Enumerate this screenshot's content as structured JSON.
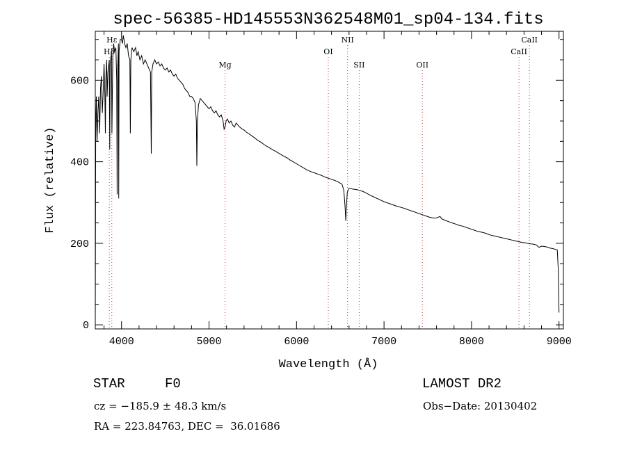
{
  "chart_data": {
    "type": "line",
    "title": "spec-56385-HD145553N362548M01_sp04-134.fits",
    "xlabel": "Wavelength (Å)",
    "ylabel": "Flux (relative)",
    "xlim": [
      3700,
      9050
    ],
    "ylim": [
      -10,
      720
    ],
    "xticks": [
      4000,
      5000,
      6000,
      7000,
      8000,
      9000
    ],
    "yticks": [
      0,
      200,
      400,
      600
    ],
    "grid": false,
    "series": [
      {
        "points": [
          [
            3700,
            0
          ],
          [
            3705,
            480
          ],
          [
            3712,
            560
          ],
          [
            3720,
            450
          ],
          [
            3730,
            520
          ],
          [
            3740,
            560
          ],
          [
            3750,
            470
          ],
          [
            3760,
            580
          ],
          [
            3770,
            610
          ],
          [
            3780,
            520
          ],
          [
            3790,
            570
          ],
          [
            3800,
            640
          ],
          [
            3810,
            560
          ],
          [
            3815,
            470
          ],
          [
            3820,
            600
          ],
          [
            3830,
            650
          ],
          [
            3835,
            560
          ],
          [
            3845,
            620
          ],
          [
            3860,
            650
          ],
          [
            3865,
            430
          ],
          [
            3870,
            640
          ],
          [
            3885,
            670
          ],
          [
            3890,
            470
          ],
          [
            3900,
            660
          ],
          [
            3910,
            690
          ],
          [
            3920,
            670
          ],
          [
            3935,
            680
          ],
          [
            3945,
            600
          ],
          [
            3950,
            320
          ],
          [
            3955,
            620
          ],
          [
            3965,
            690
          ],
          [
            3968,
            310
          ],
          [
            3972,
            670
          ],
          [
            3985,
            700
          ],
          [
            4000,
            700
          ],
          [
            4010,
            690
          ],
          [
            4020,
            710
          ],
          [
            4035,
            690
          ],
          [
            4050,
            680
          ],
          [
            4065,
            690
          ],
          [
            4080,
            660
          ],
          [
            4095,
            650
          ],
          [
            4101,
            470
          ],
          [
            4106,
            650
          ],
          [
            4120,
            680
          ],
          [
            4140,
            670
          ],
          [
            4160,
            680
          ],
          [
            4175,
            660
          ],
          [
            4190,
            670
          ],
          [
            4210,
            650
          ],
          [
            4230,
            660
          ],
          [
            4250,
            640
          ],
          [
            4270,
            650
          ],
          [
            4290,
            640
          ],
          [
            4310,
            630
          ],
          [
            4330,
            620
          ],
          [
            4340,
            420
          ],
          [
            4345,
            620
          ],
          [
            4360,
            640
          ],
          [
            4380,
            650
          ],
          [
            4400,
            640
          ],
          [
            4420,
            645
          ],
          [
            4440,
            635
          ],
          [
            4460,
            640
          ],
          [
            4480,
            630
          ],
          [
            4500,
            625
          ],
          [
            4520,
            630
          ],
          [
            4540,
            620
          ],
          [
            4560,
            625
          ],
          [
            4580,
            615
          ],
          [
            4600,
            610
          ],
          [
            4620,
            615
          ],
          [
            4640,
            605
          ],
          [
            4660,
            600
          ],
          [
            4680,
            595
          ],
          [
            4700,
            590
          ],
          [
            4720,
            580
          ],
          [
            4740,
            575
          ],
          [
            4760,
            570
          ],
          [
            4780,
            560
          ],
          [
            4800,
            560
          ],
          [
            4820,
            555
          ],
          [
            4840,
            545
          ],
          [
            4855,
            500
          ],
          [
            4861,
            390
          ],
          [
            4867,
            500
          ],
          [
            4880,
            540
          ],
          [
            4900,
            555
          ],
          [
            4920,
            550
          ],
          [
            4940,
            545
          ],
          [
            4960,
            540
          ],
          [
            4980,
            535
          ],
          [
            5000,
            530
          ],
          [
            5020,
            535
          ],
          [
            5040,
            525
          ],
          [
            5060,
            520
          ],
          [
            5080,
            525
          ],
          [
            5100,
            515
          ],
          [
            5120,
            510
          ],
          [
            5140,
            515
          ],
          [
            5160,
            500
          ],
          [
            5172,
            480
          ],
          [
            5183,
            485
          ],
          [
            5195,
            500
          ],
          [
            5210,
            505
          ],
          [
            5230,
            495
          ],
          [
            5250,
            500
          ],
          [
            5270,
            490
          ],
          [
            5290,
            485
          ],
          [
            5310,
            495
          ],
          [
            5330,
            490
          ],
          [
            5350,
            485
          ],
          [
            5380,
            480
          ],
          [
            5400,
            478
          ],
          [
            5430,
            472
          ],
          [
            5460,
            468
          ],
          [
            5500,
            462
          ],
          [
            5530,
            457
          ],
          [
            5560,
            452
          ],
          [
            5600,
            447
          ],
          [
            5630,
            442
          ],
          [
            5660,
            438
          ],
          [
            5700,
            433
          ],
          [
            5740,
            428
          ],
          [
            5780,
            423
          ],
          [
            5820,
            418
          ],
          [
            5860,
            413
          ],
          [
            5890,
            410
          ],
          [
            5920,
            405
          ],
          [
            5960,
            400
          ],
          [
            6000,
            395
          ],
          [
            6040,
            390
          ],
          [
            6080,
            385
          ],
          [
            6120,
            380
          ],
          [
            6160,
            376
          ],
          [
            6200,
            373
          ],
          [
            6240,
            370
          ],
          [
            6280,
            367
          ],
          [
            6320,
            363
          ],
          [
            6360,
            360
          ],
          [
            6400,
            357
          ],
          [
            6440,
            354
          ],
          [
            6480,
            350
          ],
          [
            6520,
            345
          ],
          [
            6540,
            330
          ],
          [
            6555,
            290
          ],
          [
            6563,
            255
          ],
          [
            6570,
            290
          ],
          [
            6580,
            325
          ],
          [
            6600,
            335
          ],
          [
            6640,
            333
          ],
          [
            6680,
            332
          ],
          [
            6720,
            330
          ],
          [
            6760,
            327
          ],
          [
            6800,
            323
          ],
          [
            6840,
            318
          ],
          [
            6880,
            314
          ],
          [
            6920,
            310
          ],
          [
            6960,
            306
          ],
          [
            7000,
            302
          ],
          [
            7040,
            299
          ],
          [
            7080,
            296
          ],
          [
            7120,
            293
          ],
          [
            7160,
            290
          ],
          [
            7200,
            288
          ],
          [
            7240,
            285
          ],
          [
            7280,
            282
          ],
          [
            7320,
            279
          ],
          [
            7360,
            276
          ],
          [
            7400,
            273
          ],
          [
            7440,
            270
          ],
          [
            7480,
            267
          ],
          [
            7520,
            264
          ],
          [
            7560,
            262
          ],
          [
            7600,
            262
          ],
          [
            7640,
            266
          ],
          [
            7660,
            260
          ],
          [
            7700,
            256
          ],
          [
            7740,
            253
          ],
          [
            7780,
            250
          ],
          [
            7820,
            247
          ],
          [
            7860,
            244
          ],
          [
            7900,
            242
          ],
          [
            7940,
            239
          ],
          [
            7980,
            236
          ],
          [
            8020,
            233
          ],
          [
            8060,
            230
          ],
          [
            8100,
            228
          ],
          [
            8140,
            226
          ],
          [
            8180,
            223
          ],
          [
            8220,
            220
          ],
          [
            8260,
            218
          ],
          [
            8300,
            216
          ],
          [
            8340,
            214
          ],
          [
            8380,
            212
          ],
          [
            8420,
            210
          ],
          [
            8460,
            208
          ],
          [
            8500,
            206
          ],
          [
            8540,
            204
          ],
          [
            8580,
            202
          ],
          [
            8620,
            201
          ],
          [
            8660,
            199
          ],
          [
            8700,
            198
          ],
          [
            8740,
            196
          ],
          [
            8770,
            190
          ],
          [
            8800,
            193
          ],
          [
            8840,
            192
          ],
          [
            8880,
            190
          ],
          [
            8900,
            188
          ],
          [
            8930,
            187
          ],
          [
            8960,
            185
          ],
          [
            8980,
            184
          ],
          [
            8990,
            140
          ],
          [
            9000,
            30
          ]
        ]
      }
    ],
    "lines": [
      {
        "label": "Hε",
        "x": 3889,
        "row": 1
      },
      {
        "label": "Hδ",
        "x": 3860,
        "row": 2
      },
      {
        "label": "Mg",
        "x": 5183,
        "row": 3
      },
      {
        "label": "OI",
        "x": 6363,
        "row": 2
      },
      {
        "label": "NII",
        "x": 6583,
        "row": 1
      },
      {
        "label": "SII",
        "x": 6716,
        "row": 3
      },
      {
        "label": "OII",
        "x": 7438,
        "row": 3
      },
      {
        "label": "CaII",
        "x": 8542,
        "row": 2
      },
      {
        "label": "CaII",
        "x": 8662,
        "row": 1
      }
    ]
  },
  "footer": {
    "object": "STAR",
    "subclass": "F0",
    "survey": "LAMOST DR2",
    "cz": "cz = −185.9 ± 48.3 km/s",
    "obsdate": "Obs−Date: 20130402",
    "coords": "RA = 223.84763, DEC =  36.01686"
  }
}
